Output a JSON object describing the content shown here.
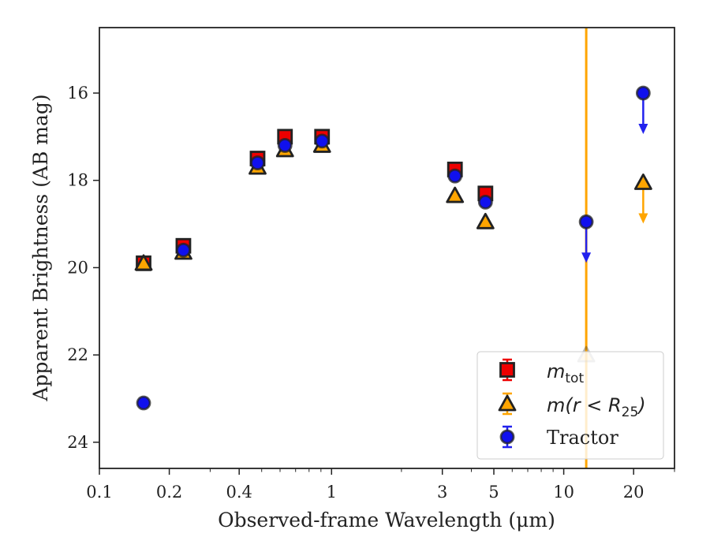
{
  "chart_data": {
    "type": "scatter",
    "title": "",
    "xlabel": "Observed-frame Wavelength (μm)",
    "ylabel": "Apparent Brightness (AB mag)",
    "xscale": "log",
    "xlim": [
      0.1,
      30
    ],
    "ylim": [
      24.6,
      14.5
    ],
    "y_inverted": true,
    "x_ticks": [
      {
        "value": 0.1,
        "label": "0.1"
      },
      {
        "value": 0.2,
        "label": "0.2"
      },
      {
        "value": 0.4,
        "label": "0.4"
      },
      {
        "value": 1,
        "label": "1"
      },
      {
        "value": 3,
        "label": "3"
      },
      {
        "value": 5,
        "label": "5"
      },
      {
        "value": 10,
        "label": "10"
      },
      {
        "value": 20,
        "label": "20"
      }
    ],
    "y_ticks": [
      {
        "value": 16,
        "label": "16"
      },
      {
        "value": 18,
        "label": "18"
      },
      {
        "value": 20,
        "label": "20"
      },
      {
        "value": 22,
        "label": "22"
      },
      {
        "value": 24,
        "label": "24"
      }
    ],
    "grid": false,
    "legend_position": "lower-right",
    "vline": {
      "x": 12.5,
      "color": "#ffa500"
    },
    "series": [
      {
        "name": "m_tot",
        "legend_label": "m",
        "legend_sub": "tot",
        "marker": "square",
        "fill": "#ee0000",
        "edge": "#222222",
        "points": [
          {
            "x": 0.155,
            "y": 19.9
          },
          {
            "x": 0.23,
            "y": 19.5
          },
          {
            "x": 0.48,
            "y": 17.5
          },
          {
            "x": 0.63,
            "y": 17.0
          },
          {
            "x": 0.91,
            "y": 17.0
          },
          {
            "x": 3.4,
            "y": 17.75
          },
          {
            "x": 4.6,
            "y": 18.3
          }
        ]
      },
      {
        "name": "m(r<R25)",
        "legend_label": "m(r < R",
        "legend_sub": "25",
        "legend_suffix": ")",
        "marker": "triangle",
        "fill": "#ffa500",
        "edge": "#222222",
        "points": [
          {
            "x": 0.155,
            "y": 19.9
          },
          {
            "x": 0.23,
            "y": 19.65
          },
          {
            "x": 0.48,
            "y": 17.7
          },
          {
            "x": 0.63,
            "y": 17.3
          },
          {
            "x": 0.91,
            "y": 17.2
          },
          {
            "x": 3.4,
            "y": 18.35
          },
          {
            "x": 4.6,
            "y": 18.95
          },
          {
            "x": 12.5,
            "y": 22.0,
            "faded": true
          },
          {
            "x": 22.0,
            "y": 18.05,
            "upper_limit": true
          }
        ]
      },
      {
        "name": "Tractor",
        "legend_label": "Tractor",
        "marker": "circle",
        "fill": "#1010ee",
        "edge": "#222222",
        "points": [
          {
            "x": 0.155,
            "y": 23.1
          },
          {
            "x": 0.23,
            "y": 19.6
          },
          {
            "x": 0.48,
            "y": 17.6
          },
          {
            "x": 0.63,
            "y": 17.2
          },
          {
            "x": 0.91,
            "y": 17.1
          },
          {
            "x": 3.4,
            "y": 17.9
          },
          {
            "x": 4.6,
            "y": 18.5
          },
          {
            "x": 12.5,
            "y": 18.95,
            "upper_limit": true
          },
          {
            "x": 22.0,
            "y": 16.0,
            "upper_limit": true
          }
        ]
      }
    ]
  }
}
